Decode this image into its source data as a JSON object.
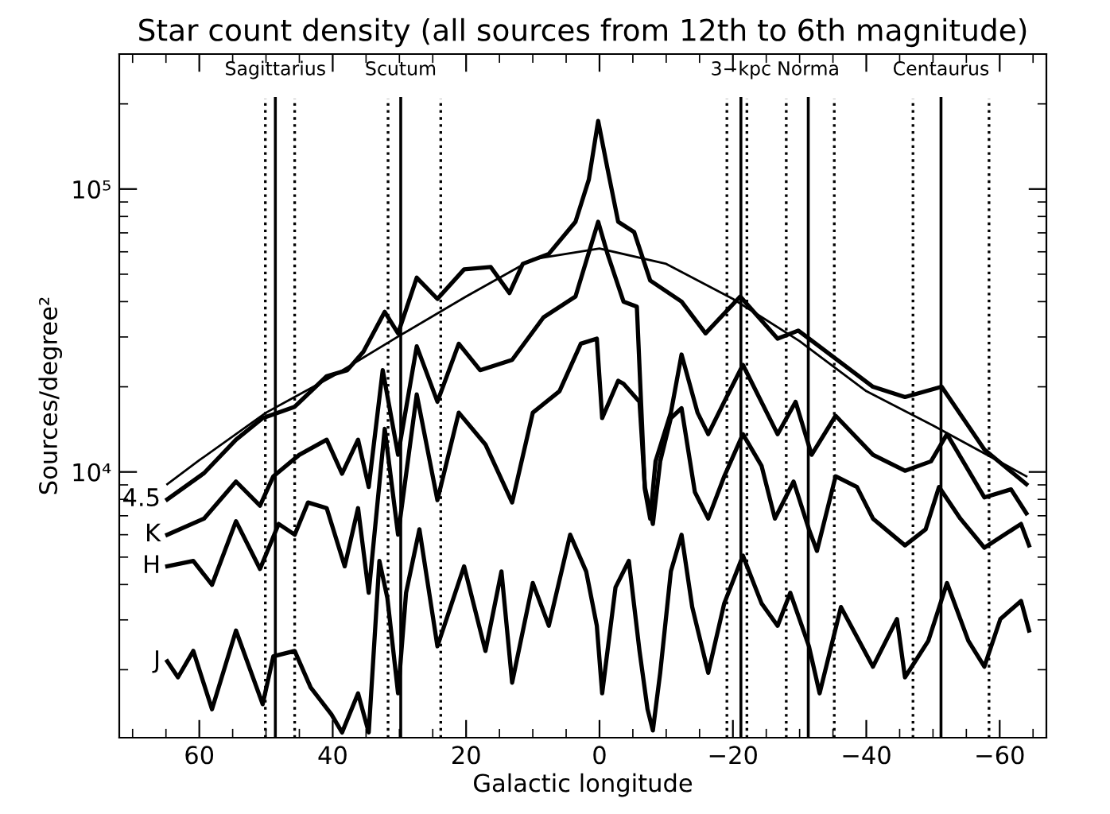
{
  "chart_data": {
    "type": "line",
    "title": "Star count density (all sources from 12th to 6th magnitude)",
    "xlabel": "Galactic longitude",
    "ylabel": "Sources/degree²",
    "log": "y",
    "xlim": [
      72,
      -67
    ],
    "xticks": [
      {
        "value": 60,
        "label": "60"
      },
      {
        "value": 40,
        "label": "40"
      },
      {
        "value": 20,
        "label": "20"
      },
      {
        "value": 0,
        "label": "0"
      },
      {
        "value": -20,
        "label": "−20"
      },
      {
        "value": -40,
        "label": "−40"
      },
      {
        "value": -60,
        "label": "−60"
      }
    ],
    "ylim": [
      1150,
      300000
    ],
    "yticks": [
      {
        "value": 10000,
        "label": "10⁴"
      },
      {
        "value": 100000,
        "label": "10⁵"
      }
    ],
    "grid": false,
    "legend": false,
    "marker": "none",
    "line_style": "solid",
    "series": [
      {
        "name": "4.5",
        "color": "#000000",
        "x": [
          64.8,
          59.3,
          54.5,
          50.5,
          45.7,
          40.9,
          37.8,
          35.4,
          32.2,
          30.2,
          27.4,
          24.3,
          20.3,
          16.3,
          13.5,
          11.5,
          7.6,
          3.6,
          1.6,
          0.2,
          -1.2,
          -2.8,
          -5.2,
          -7.6,
          -12.3,
          -15.9,
          -21.1,
          -26.7,
          -29.8,
          -34.6,
          -41.0,
          -45.8,
          -51.3,
          -57.7,
          -64.0
        ],
        "values": [
          8000,
          9900,
          13000,
          15500,
          17000,
          21800,
          22900,
          26600,
          36800,
          30900,
          48600,
          40900,
          52000,
          53000,
          42900,
          54400,
          59000,
          76600,
          108000,
          174000,
          118000,
          76600,
          70400,
          47500,
          40000,
          30900,
          41700,
          29600,
          31600,
          26000,
          20000,
          18400,
          20000,
          12000,
          9050
        ]
      },
      {
        "name": "K",
        "color": "#000000",
        "x": [
          64.8,
          59.3,
          54.5,
          50.9,
          48.9,
          45.0,
          40.9,
          38.6,
          36.2,
          34.6,
          32.5,
          30.2,
          27.4,
          24.3,
          21.1,
          17.9,
          13.1,
          8.4,
          3.6,
          0.2,
          -1.2,
          -3.6,
          -5.6,
          -6.8,
          -7.6,
          -8.4,
          -10.7,
          -12.3,
          -14.7,
          -16.3,
          -18.7,
          -21.5,
          -26.7,
          -29.4,
          -31.8,
          -35.4,
          -41.0,
          -45.8,
          -49.7,
          -52.1,
          -57.7,
          -61.7,
          -64.0
        ],
        "values": [
          6000,
          6840,
          9250,
          7600,
          9650,
          11500,
          13000,
          9860,
          13000,
          8850,
          22900,
          11500,
          27800,
          17700,
          28400,
          22900,
          24900,
          35200,
          41700,
          76600,
          59000,
          40000,
          38400,
          8680,
          6840,
          10900,
          16200,
          26000,
          16200,
          13600,
          17700,
          23900,
          13600,
          17700,
          11500,
          15800,
          11500,
          10100,
          10900,
          13600,
          8130,
          8680,
          7140
        ]
      },
      {
        "name": "H",
        "color": "#000000",
        "x": [
          64.8,
          60.9,
          58.1,
          54.5,
          50.9,
          48.1,
          45.7,
          43.7,
          40.9,
          38.2,
          36.2,
          34.6,
          32.2,
          30.2,
          27.4,
          24.3,
          21.1,
          17.1,
          13.1,
          10.0,
          6.0,
          2.8,
          0.4,
          -0.4,
          -2.8,
          -3.6,
          -6.0,
          -6.8,
          -8.0,
          -9.1,
          -10.7,
          -12.3,
          -14.3,
          -16.3,
          -18.7,
          -21.5,
          -24.3,
          -26.3,
          -29.1,
          -31.4,
          -32.6,
          -35.4,
          -38.6,
          -41.0,
          -45.8,
          -48.9,
          -50.9,
          -54.1,
          -57.7,
          -63.2,
          -64.4
        ],
        "values": [
          4640,
          4850,
          3990,
          6700,
          4540,
          6550,
          6000,
          7800,
          7450,
          4640,
          7450,
          3740,
          14200,
          6000,
          18800,
          7950,
          16200,
          12500,
          7800,
          16200,
          19300,
          28400,
          29600,
          15500,
          21000,
          20500,
          17700,
          8850,
          6550,
          10900,
          15500,
          16800,
          8490,
          6840,
          9650,
          13600,
          10500,
          6840,
          9250,
          6270,
          5260,
          9650,
          8850,
          6840,
          5500,
          6270,
          8850,
          6840,
          5400,
          6550,
          5500
        ]
      },
      {
        "name": "J",
        "color": "#000000",
        "x": [
          64.8,
          63.2,
          60.9,
          58.1,
          54.5,
          50.5,
          48.9,
          45.7,
          43.3,
          40.2,
          38.6,
          36.2,
          34.6,
          33.0,
          31.8,
          30.2,
          29.0,
          27.0,
          24.3,
          20.3,
          17.1,
          14.7,
          13.1,
          10.0,
          7.6,
          4.4,
          2.0,
          0.4,
          -0.4,
          -2.4,
          -4.4,
          -6.0,
          -7.2,
          -8.0,
          -9.1,
          -10.7,
          -12.3,
          -13.9,
          -16.3,
          -18.7,
          -21.5,
          -24.3,
          -26.7,
          -28.6,
          -31.4,
          -33.0,
          -36.2,
          -41.0,
          -44.6,
          -45.8,
          -49.3,
          -52.1,
          -55.3,
          -57.7,
          -60.1,
          -63.2,
          -64.4
        ],
        "values": [
          2140,
          1880,
          2330,
          1450,
          2750,
          1510,
          2230,
          2330,
          1730,
          1390,
          1200,
          1650,
          1200,
          4850,
          3580,
          1650,
          3740,
          6270,
          2420,
          4640,
          2330,
          4450,
          1800,
          4050,
          2860,
          6000,
          4450,
          2860,
          1650,
          3910,
          4850,
          2330,
          1450,
          1220,
          1950,
          4450,
          6000,
          3330,
          1950,
          3430,
          5060,
          3430,
          2860,
          3740,
          2420,
          1650,
          3330,
          2050,
          3020,
          1880,
          2530,
          4050,
          2530,
          2050,
          3020,
          3500,
          2750
        ]
      },
      {
        "color": "#000000",
        "x": [
          64.8,
          60,
          50,
          40,
          30,
          20,
          10,
          0,
          -10,
          -20,
          -30,
          -40,
          -50,
          -64
        ],
        "values": [
          9050,
          11000,
          16200,
          21800,
          30300,
          41700,
          56500,
          61600,
          54400,
          40900,
          29000,
          19300,
          14600,
          9650
        ]
      }
    ],
    "ref_lines": [
      {
        "axis": "x",
        "value": 50.1,
        "line_style": "dotted",
        "color": "#000000"
      },
      {
        "axis": "x",
        "value": 48.6,
        "label": "Sagittarius",
        "line_style": "solid",
        "color": "#000000"
      },
      {
        "axis": "x",
        "value": 45.7,
        "line_style": "dotted",
        "color": "#000000"
      },
      {
        "axis": "x",
        "value": 31.7,
        "line_style": "dotted",
        "color": "#000000"
      },
      {
        "axis": "x",
        "value": 29.8,
        "label": "Scutum",
        "line_style": "solid",
        "color": "#000000"
      },
      {
        "axis": "x",
        "value": 23.8,
        "line_style": "dotted",
        "color": "#000000"
      },
      {
        "axis": "x",
        "value": -19.1,
        "line_style": "dotted",
        "color": "#000000"
      },
      {
        "axis": "x",
        "value": -21.2,
        "label": "3−kpc",
        "line_style": "solid",
        "color": "#000000"
      },
      {
        "axis": "x",
        "value": -22.1,
        "line_style": "dotted",
        "color": "#000000"
      },
      {
        "axis": "x",
        "value": -28.0,
        "line_style": "dotted",
        "color": "#000000"
      },
      {
        "axis": "x",
        "value": -31.3,
        "label": "Norma",
        "line_style": "solid",
        "color": "#000000"
      },
      {
        "axis": "x",
        "value": -35.2,
        "line_style": "dotted",
        "color": "#000000"
      },
      {
        "axis": "x",
        "value": -47.0,
        "line_style": "dotted",
        "color": "#000000"
      },
      {
        "axis": "x",
        "value": -51.2,
        "label": "Centaurus",
        "line_style": "solid",
        "color": "#000000"
      },
      {
        "axis": "x",
        "value": -58.4,
        "line_style": "dotted",
        "color": "#000000"
      }
    ]
  }
}
